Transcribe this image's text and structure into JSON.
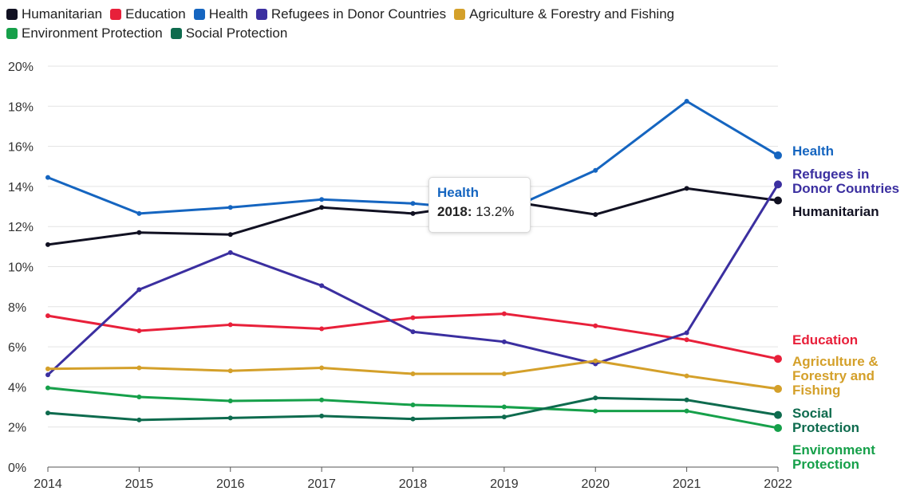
{
  "chart_data": {
    "type": "line",
    "x": [
      "2014",
      "2015",
      "2016",
      "2017",
      "2018",
      "2019",
      "2020",
      "2021",
      "2022"
    ],
    "ylim": [
      0,
      20
    ],
    "yticks": [
      "0%",
      "2%",
      "4%",
      "6%",
      "8%",
      "10%",
      "12%",
      "14%",
      "16%",
      "18%",
      "20%"
    ],
    "grid": true,
    "legend_position": "top-left",
    "series": [
      {
        "name": "Humanitarian",
        "color": "#111122",
        "values": [
          11.1,
          11.7,
          11.6,
          12.95,
          12.65,
          13.3,
          12.6,
          13.9,
          13.3
        ],
        "end_label": [
          "Humanitarian"
        ]
      },
      {
        "name": "Education",
        "color": "#e8203a",
        "values": [
          7.55,
          6.8,
          7.1,
          6.9,
          7.45,
          7.65,
          7.05,
          6.35,
          5.4
        ],
        "end_label": [
          "Education"
        ]
      },
      {
        "name": "Health",
        "color": "#1565c0",
        "values": [
          14.45,
          12.65,
          12.95,
          13.35,
          13.15,
          12.75,
          14.8,
          18.25,
          15.55
        ],
        "end_label": [
          "Health"
        ]
      },
      {
        "name": "Refugees in Donor Countries",
        "color": "#3b2fa0",
        "values": [
          4.6,
          8.85,
          10.7,
          9.05,
          6.75,
          6.25,
          5.15,
          6.7,
          14.1
        ],
        "end_label": [
          "Refugees in",
          "Donor Countries"
        ]
      },
      {
        "name": "Agriculture & Forestry and Fishing",
        "color": "#d4a02a",
        "values": [
          4.9,
          4.95,
          4.8,
          4.95,
          4.65,
          4.65,
          5.3,
          4.55,
          3.9
        ],
        "end_label": [
          "Agriculture &",
          "Forestry and",
          "Fishing"
        ]
      },
      {
        "name": "Environment Protection",
        "color": "#16a04a",
        "values": [
          3.95,
          3.5,
          3.3,
          3.35,
          3.1,
          3.0,
          2.8,
          2.8,
          1.95
        ],
        "end_label": [
          "Environment",
          "Protection"
        ]
      },
      {
        "name": "Social Protection",
        "color": "#0e6b4e",
        "values": [
          2.7,
          2.35,
          2.45,
          2.55,
          2.4,
          2.5,
          3.45,
          3.35,
          2.6
        ],
        "end_label": [
          "Social",
          "Protection"
        ]
      }
    ]
  },
  "tooltip": {
    "series": "Health",
    "year_label": "2018:",
    "value_label": "13.2%"
  }
}
